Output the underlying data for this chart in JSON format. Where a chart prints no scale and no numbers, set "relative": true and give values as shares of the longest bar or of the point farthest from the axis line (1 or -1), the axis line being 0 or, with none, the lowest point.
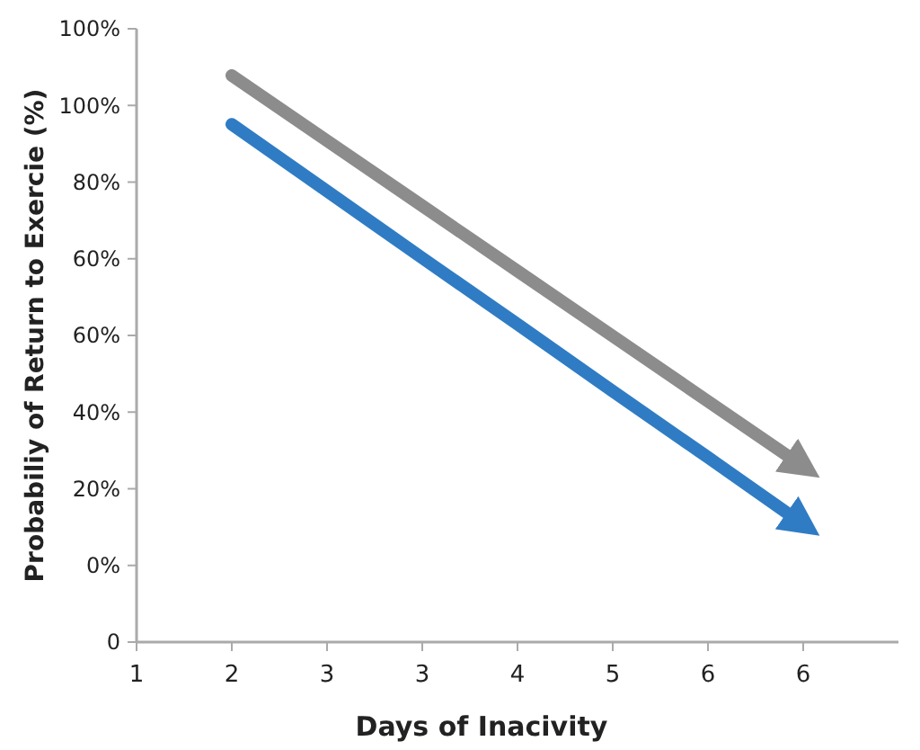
{
  "chart_data": {
    "type": "line",
    "xlabel": "Days of Inacivity",
    "ylabel": "Probabiliy of Return to Exercie (%)",
    "categories": [
      "1",
      "2",
      "3",
      "3",
      "4",
      "5",
      "6",
      "6"
    ],
    "relative": true,
    "annotations": [
      "0",
      "0%",
      "20%",
      "40%",
      "60%",
      "60%",
      "80%",
      "100%",
      "100%"
    ],
    "grid": false,
    "marker": "none",
    "line_style": "solid",
    "series": [
      {
        "color": "#8c8c8c",
        "values": [
          null,
          1,
          0.885,
          0.77,
          0.655,
          0.54,
          0.425,
          0.31
        ]
      },
      {
        "color": "#2f7cc4",
        "values": [
          null,
          0.914,
          0.796,
          0.678,
          0.561,
          0.443,
          0.326,
          0.208
        ]
      }
    ]
  }
}
